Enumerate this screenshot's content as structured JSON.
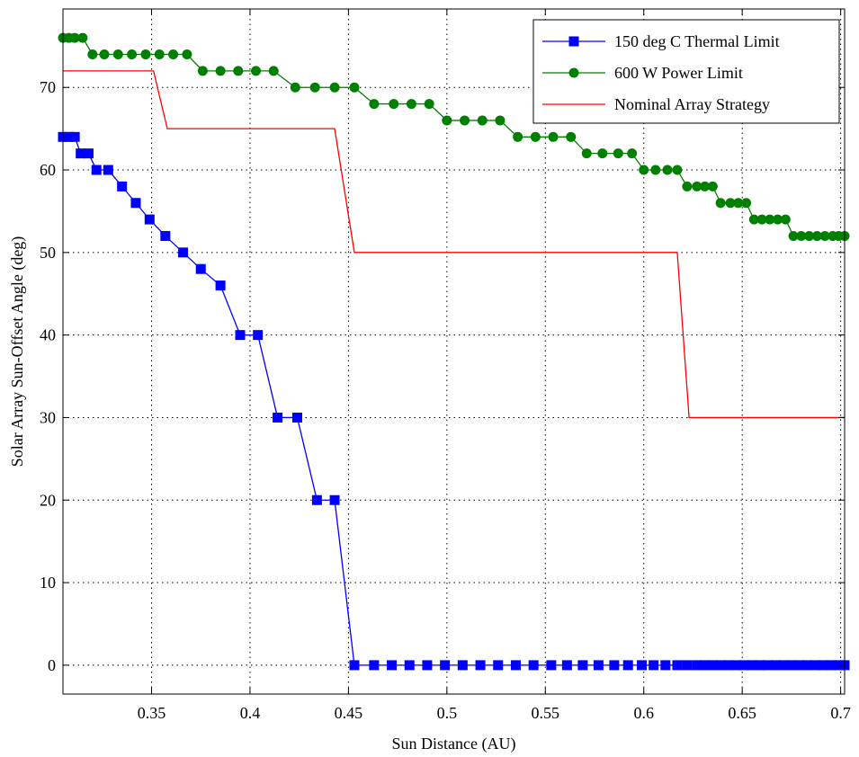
{
  "chart_data": {
    "type": "line",
    "title": "",
    "xlabel": "Sun Distance (AU)",
    "ylabel": "Solar Array Sun-Offset Angle (deg)",
    "xlim": [
      0.305,
      0.702
    ],
    "ylim": [
      -3.5,
      79.5
    ],
    "xticks": [
      0.35,
      0.4,
      0.45,
      0.5,
      0.55,
      0.6,
      0.65,
      0.7
    ],
    "xtick_labels": [
      "0.35",
      "0.4",
      "0.45",
      "0.5",
      "0.55",
      "0.6",
      "0.65",
      "0.7"
    ],
    "yticks": [
      0,
      10,
      20,
      30,
      40,
      50,
      60,
      70
    ],
    "ytick_labels": [
      "0",
      "10",
      "20",
      "30",
      "40",
      "50",
      "60",
      "70"
    ],
    "grid": true,
    "legend_position": "top-right",
    "series": [
      {
        "name": "150 deg C Thermal Limit",
        "color": "#0000ff",
        "marker": "square",
        "x": [
          0.305,
          0.308,
          0.311,
          0.314,
          0.318,
          0.322,
          0.328,
          0.335,
          0.342,
          0.349,
          0.357,
          0.366,
          0.375,
          0.385,
          0.395,
          0.404,
          0.414,
          0.424,
          0.434,
          0.443,
          0.453,
          0.463,
          0.472,
          0.481,
          0.49,
          0.499,
          0.508,
          0.517,
          0.526,
          0.535,
          0.544,
          0.553,
          0.561,
          0.569,
          0.577,
          0.585,
          0.592,
          0.599,
          0.605,
          0.611,
          0.617,
          0.622,
          0.627,
          0.631,
          0.635,
          0.639,
          0.643,
          0.647,
          0.651,
          0.655,
          0.659,
          0.663,
          0.667,
          0.671,
          0.675,
          0.679,
          0.683,
          0.687,
          0.691,
          0.695,
          0.699,
          0.702
        ],
        "y": [
          64,
          64,
          64,
          62,
          62,
          60,
          60,
          58,
          56,
          54,
          52,
          50,
          48,
          46,
          40,
          40,
          30,
          30,
          20,
          20,
          0,
          0,
          0,
          0,
          0,
          0,
          0,
          0,
          0,
          0,
          0,
          0,
          0,
          0,
          0,
          0,
          0,
          0,
          0,
          0,
          0,
          0,
          0,
          0,
          0,
          0,
          0,
          0,
          0,
          0,
          0,
          0,
          0,
          0,
          0,
          0,
          0,
          0,
          0,
          0,
          0,
          0
        ]
      },
      {
        "name": "600 W Power Limit",
        "color": "#008000",
        "marker": "circle",
        "x": [
          0.305,
          0.308,
          0.311,
          0.315,
          0.32,
          0.326,
          0.333,
          0.34,
          0.347,
          0.354,
          0.361,
          0.368,
          0.376,
          0.385,
          0.394,
          0.403,
          0.412,
          0.423,
          0.433,
          0.443,
          0.453,
          0.463,
          0.473,
          0.482,
          0.491,
          0.5,
          0.509,
          0.518,
          0.527,
          0.536,
          0.545,
          0.554,
          0.563,
          0.571,
          0.579,
          0.587,
          0.594,
          0.6,
          0.606,
          0.612,
          0.617,
          0.622,
          0.627,
          0.631,
          0.635,
          0.639,
          0.644,
          0.648,
          0.652,
          0.656,
          0.66,
          0.664,
          0.668,
          0.672,
          0.676,
          0.68,
          0.684,
          0.688,
          0.692,
          0.696,
          0.699,
          0.702
        ],
        "y": [
          76,
          76,
          76,
          76,
          74,
          74,
          74,
          74,
          74,
          74,
          74,
          74,
          72,
          72,
          72,
          72,
          72,
          70,
          70,
          70,
          70,
          68,
          68,
          68,
          68,
          66,
          66,
          66,
          66,
          64,
          64,
          64,
          64,
          62,
          62,
          62,
          62,
          60,
          60,
          60,
          60,
          58,
          58,
          58,
          58,
          56,
          56,
          56,
          56,
          54,
          54,
          54,
          54,
          54,
          52,
          52,
          52,
          52,
          52,
          52,
          52,
          52
        ]
      },
      {
        "name": "Nominal Array Strategy",
        "color": "#ff0000",
        "marker": "none",
        "x": [
          0.305,
          0.351,
          0.358,
          0.443,
          0.453,
          0.617,
          0.623,
          0.702
        ],
        "y": [
          72,
          72,
          65,
          65,
          50,
          50,
          30,
          30
        ]
      }
    ]
  }
}
